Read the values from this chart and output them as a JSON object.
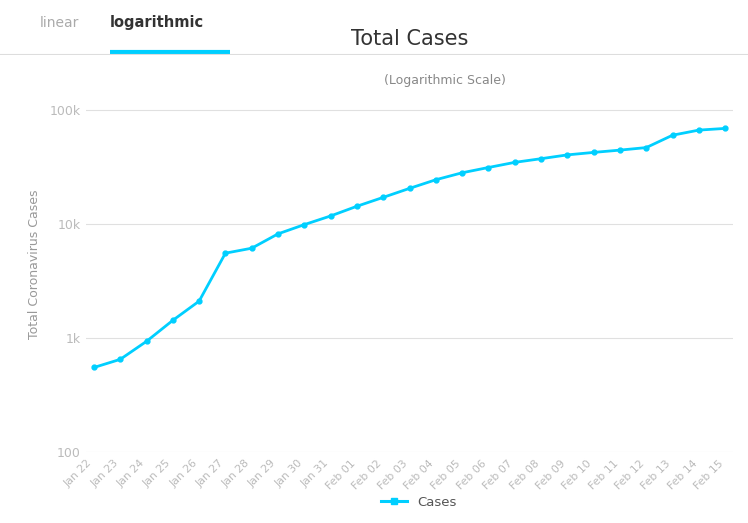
{
  "title": "Total Cases",
  "subtitle": "(Logarithmic Scale)",
  "ylabel": "Total Coronavirus Cases",
  "tab_linear": "linear",
  "tab_log": "logarithmic",
  "legend_label": "Cases",
  "line_color": "#00CFFF",
  "marker_color": "#00CFFF",
  "background_color": "#ffffff",
  "plot_bg_color": "#ffffff",
  "grid_color": "#e0e0e0",
  "title_color": "#333333",
  "tab_active_color": "#333333",
  "tab_inactive_color": "#aaaaaa",
  "ylabel_color": "#999999",
  "tick_color": "#bbbbbb",
  "dates": [
    "Jan 22",
    "Jan 23",
    "Jan 24",
    "Jan 25",
    "Jan 26",
    "Jan 27",
    "Jan 28",
    "Jan 29",
    "Jan 30",
    "Jan 31",
    "Feb 01",
    "Feb 02",
    "Feb 03",
    "Feb 04",
    "Feb 05",
    "Feb 06",
    "Feb 07",
    "Feb 08",
    "Feb 09",
    "Feb 10",
    "Feb 11",
    "Feb 12",
    "Feb 13",
    "Feb 14",
    "Feb 15"
  ],
  "cases": [
    555,
    654,
    941,
    1438,
    2118,
    5578,
    6165,
    8235,
    9925,
    11821,
    14380,
    17205,
    20626,
    24553,
    28266,
    31439,
    34876,
    37552,
    40553,
    42638,
    44653,
    46997,
    60328,
    66885,
    69197
  ],
  "ylim_min": 100,
  "ylim_max": 200000,
  "ytick_values": [
    100,
    1000,
    10000,
    100000
  ],
  "ytick_labels": [
    "100",
    "1k",
    "10k",
    "100k"
  ]
}
